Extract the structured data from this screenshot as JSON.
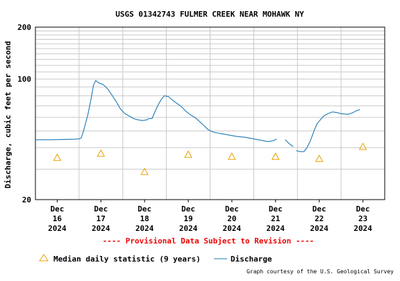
{
  "chart_data": {
    "type": "line",
    "title": "USGS 01342743 FULMER CREEK NEAR MOHAWK NY",
    "ylabel": "Discharge, cubic feet per second",
    "y_scale": "log",
    "ylim": [
      20,
      200
    ],
    "y_tick_labels": [
      {
        "value": 20,
        "label": "20"
      },
      {
        "value": 100,
        "label": "100"
      },
      {
        "value": 200,
        "label": "200"
      }
    ],
    "xlim": [
      0,
      8
    ],
    "x_tick_labels": [
      {
        "x": 0.5,
        "lines": [
          "Dec",
          "16",
          "2024"
        ]
      },
      {
        "x": 1.5,
        "lines": [
          "Dec",
          "17",
          "2024"
        ]
      },
      {
        "x": 2.5,
        "lines": [
          "Dec",
          "18",
          "2024"
        ]
      },
      {
        "x": 3.5,
        "lines": [
          "Dec",
          "19",
          "2024"
        ]
      },
      {
        "x": 4.5,
        "lines": [
          "Dec",
          "20",
          "2024"
        ]
      },
      {
        "x": 5.5,
        "lines": [
          "Dec",
          "21",
          "2024"
        ]
      },
      {
        "x": 6.5,
        "lines": [
          "Dec",
          "22",
          "2024"
        ]
      },
      {
        "x": 7.5,
        "lines": [
          "Dec",
          "23",
          "2024"
        ]
      }
    ],
    "grid": true,
    "series": [
      {
        "name": "Discharge",
        "kind": "line",
        "color": "#1f78b4",
        "segments": [
          [
            [
              0.0,
              44.5
            ],
            [
              0.3,
              44.5
            ],
            [
              0.6,
              44.6
            ],
            [
              0.9,
              44.8
            ],
            [
              1.0,
              45.0
            ],
            [
              1.05,
              45.5
            ],
            [
              1.1,
              50
            ],
            [
              1.2,
              62
            ],
            [
              1.28,
              78
            ],
            [
              1.33,
              92
            ],
            [
              1.38,
              98
            ],
            [
              1.45,
              95
            ],
            [
              1.55,
              93
            ],
            [
              1.65,
              88
            ],
            [
              1.75,
              81
            ],
            [
              1.85,
              74
            ],
            [
              1.95,
              67
            ],
            [
              2.05,
              63
            ],
            [
              2.15,
              61
            ],
            [
              2.25,
              59
            ],
            [
              2.35,
              58
            ],
            [
              2.45,
              57.5
            ],
            [
              2.55,
              58
            ],
            [
              2.6,
              59
            ],
            [
              2.67,
              59
            ],
            [
              2.72,
              63
            ],
            [
              2.8,
              70
            ],
            [
              2.88,
              76
            ],
            [
              2.95,
              80
            ],
            [
              3.05,
              79
            ],
            [
              3.15,
              75
            ],
            [
              3.25,
              72
            ],
            [
              3.35,
              69
            ],
            [
              3.45,
              65
            ],
            [
              3.55,
              62
            ],
            [
              3.65,
              60
            ],
            [
              3.75,
              57
            ],
            [
              3.85,
              54
            ],
            [
              3.95,
              51
            ],
            [
              4.05,
              49.5
            ],
            [
              4.2,
              48.5
            ],
            [
              4.4,
              47.5
            ],
            [
              4.6,
              46.5
            ],
            [
              4.8,
              46
            ],
            [
              5.0,
              45
            ],
            [
              5.1,
              44.5
            ],
            [
              5.2,
              44
            ],
            [
              5.3,
              43.5
            ],
            [
              5.38,
              43.5
            ],
            [
              5.45,
              44
            ],
            [
              5.5,
              44.5
            ],
            [
              5.52,
              45
            ]
          ],
          [
            [
              5.72,
              44.5
            ],
            [
              5.8,
              42.5
            ],
            [
              5.88,
              41
            ],
            [
              5.9,
              40.5
            ]
          ],
          [
            [
              5.97,
              38.5
            ],
            [
              6.05,
              38
            ],
            [
              6.15,
              38
            ],
            [
              6.22,
              40
            ],
            [
              6.3,
              44
            ],
            [
              6.38,
              50
            ],
            [
              6.45,
              55
            ],
            [
              6.5,
              57
            ],
            [
              6.55,
              59
            ],
            [
              6.6,
              61
            ],
            [
              6.7,
              63
            ],
            [
              6.8,
              64.5
            ],
            [
              6.9,
              64
            ],
            [
              7.0,
              63
            ],
            [
              7.15,
              62.5
            ],
            [
              7.25,
              63.5
            ],
            [
              7.35,
              65.5
            ],
            [
              7.43,
              66.5
            ]
          ]
        ]
      },
      {
        "name": "Median daily statistic (9 years)",
        "kind": "triangle",
        "color": "#e8a200",
        "points": [
          [
            0.5,
            35
          ],
          [
            1.5,
            37
          ],
          [
            2.5,
            29
          ],
          [
            3.5,
            36.5
          ],
          [
            4.5,
            35.5
          ],
          [
            5.5,
            35.5
          ],
          [
            6.5,
            34.5
          ],
          [
            7.5,
            40.5
          ]
        ]
      }
    ]
  },
  "provisional_notice": "---- Provisional Data Subject to Revision ----",
  "legend": {
    "median_label": "Median daily statistic (9 years)",
    "discharge_label": "Discharge"
  },
  "credit": "Graph courtesy of the U.S. Geological Survey",
  "colors": {
    "frame": "#000000",
    "grid": "#c8c8c8",
    "discharge": "#1f78b4",
    "median": "#e8a200",
    "provisional": "#ee0000"
  }
}
